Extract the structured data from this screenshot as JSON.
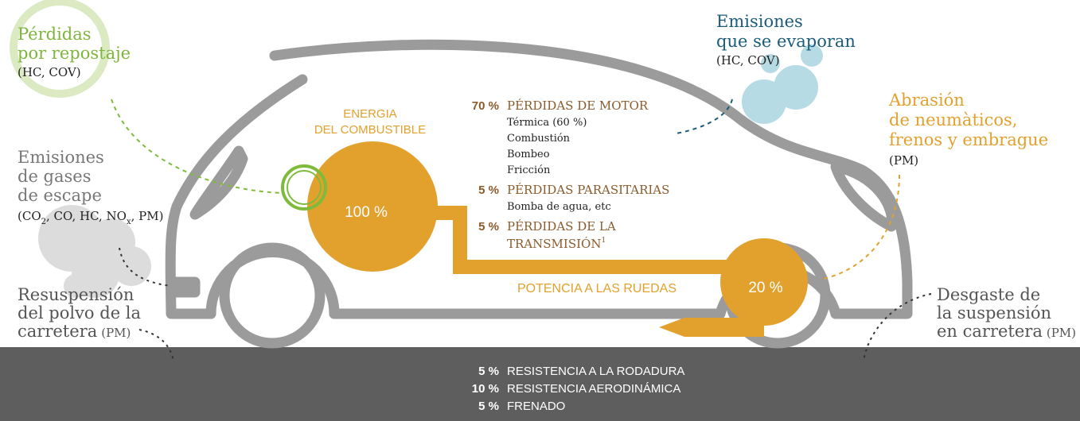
{
  "refueling": {
    "title": [
      "Pérdidas",
      "por repostaje"
    ],
    "note": "(HC, COV)"
  },
  "evaporation": {
    "title": [
      "Emisiones",
      "que se evaporan"
    ],
    "note": "(HC, COV)"
  },
  "exhaust": {
    "title": [
      "Emisiones",
      "de gases",
      "de escape"
    ],
    "note": [
      "(CO",
      "2",
      ", CO, HC, NO",
      "x",
      ", PM)"
    ]
  },
  "abrasion": {
    "title": [
      "Abrasión",
      "de neumàticos,",
      "frenos y embrague"
    ],
    "note": "(PM)"
  },
  "resuspension": {
    "title": [
      "Resuspensión",
      "del polvo de la",
      "carretera"
    ],
    "note": "(PM)"
  },
  "suspension": {
    "title": [
      "Desgaste de",
      "la suspensión",
      "en carretera"
    ],
    "note": "(PM)"
  },
  "fuel_energy": {
    "title": [
      "ENERGIA",
      "DEL COMBUSTIBLE"
    ],
    "value": "100 %"
  },
  "wheel_power": {
    "title": "POTENCIA A LAS RUEDAS",
    "value": "20 %"
  },
  "losses": [
    {
      "pct": "70 %",
      "label": [
        "PÉRDIDAS DE MOTOR"
      ],
      "items": [
        "Térmica (60 %)",
        "Combustión",
        "Bombeo",
        "Fricción"
      ]
    },
    {
      "pct": "5 %",
      "label": [
        "PÉRDIDAS PARASITARIAS"
      ],
      "items": [
        "Bomba de agua, etc"
      ]
    },
    {
      "pct": "5 %",
      "label": [
        "PÉRDIDAS DE LA",
        "TRANSMISIÓN"
      ],
      "footnote": "1"
    }
  ],
  "road": [
    {
      "pct": "5 %",
      "label": "RESISTENCIA A LA RODADURA"
    },
    {
      "pct": "10 %",
      "label": "RESISTENCIA AERODINÁMICA"
    },
    {
      "pct": "5 %",
      "label": "FRENADO"
    }
  ]
}
